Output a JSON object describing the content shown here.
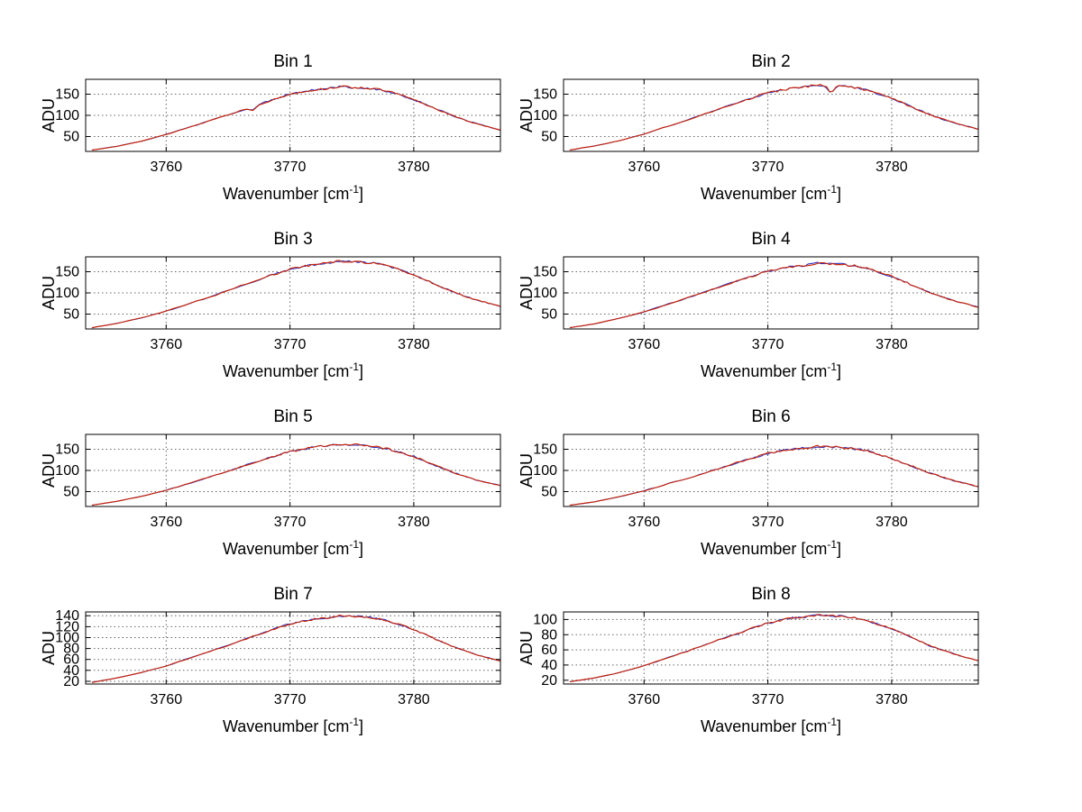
{
  "labels": {
    "ylabel": "ADU",
    "xlabel_prefix": "Wavenumber [cm",
    "xlabel_sup": "-1",
    "xlabel_suffix": "]"
  },
  "style": {
    "background": "#ffffff",
    "axis_color": "#000000",
    "grid_color": "#666666",
    "line_color_red": "#cc2200",
    "line_color_blue": "#3333bb"
  },
  "chart_data": {
    "type": "line",
    "title": "",
    "xlabel": "Wavenumber [cm^-1]",
    "ylabel": "ADU",
    "grid": true,
    "xlim": [
      3753.5,
      3787
    ],
    "xticks": [
      3760,
      3770,
      3780
    ],
    "x": [
      3754,
      3756,
      3758,
      3760,
      3762,
      3764,
      3766,
      3768,
      3769,
      3770,
      3771,
      3772,
      3773,
      3774,
      3775,
      3776,
      3777,
      3778,
      3779,
      3780,
      3781,
      3782,
      3783,
      3784,
      3785,
      3786,
      3787
    ],
    "subplots": [
      {
        "title": "Bin 1",
        "yticks": [
          50,
          100,
          150
        ],
        "ylim": [
          15,
          185
        ],
        "base": 15,
        "peak": 168,
        "noise": 2.5,
        "dips": [
          {
            "x": 3767,
            "depth": 8
          }
        ],
        "y": [
          18,
          27,
          39,
          55,
          73,
          92,
          111,
          131,
          140,
          150,
          156,
          160,
          163,
          168,
          166,
          165,
          162,
          156,
          147,
          137,
          125,
          113,
          101,
          90,
          81,
          73,
          65
        ]
      },
      {
        "title": "Bin 2",
        "yticks": [
          50,
          100,
          150
        ],
        "ylim": [
          15,
          185
        ],
        "base": 15,
        "peak": 172,
        "noise": 2.5,
        "dips": [
          {
            "x": 3775.1,
            "depth": 14
          }
        ],
        "y": [
          18,
          28,
          40,
          56,
          75,
          94,
          114,
          134,
          144,
          153,
          159,
          164,
          167,
          172,
          170,
          169,
          166,
          159,
          150,
          141,
          128,
          115,
          103,
          92,
          83,
          75,
          67
        ]
      },
      {
        "title": "Bin 3",
        "yticks": [
          50,
          100,
          150
        ],
        "ylim": [
          15,
          185
        ],
        "base": 15,
        "peak": 175,
        "noise": 2.5,
        "dips": [],
        "y": [
          18,
          28,
          41,
          57,
          76,
          95,
          116,
          137,
          146,
          156,
          162,
          167,
          170,
          175,
          173,
          172,
          169,
          162,
          153,
          143,
          130,
          117,
          105,
          93,
          84,
          76,
          68
        ]
      },
      {
        "title": "Bin 4",
        "yticks": [
          50,
          100,
          150
        ],
        "ylim": [
          15,
          185
        ],
        "base": 15,
        "peak": 170,
        "noise": 2.5,
        "dips": [],
        "y": [
          18,
          27,
          40,
          55,
          74,
          93,
          113,
          133,
          142,
          151,
          158,
          162,
          165,
          170,
          168,
          167,
          164,
          158,
          148,
          139,
          127,
          114,
          102,
          91,
          82,
          74,
          66
        ]
      },
      {
        "title": "Bin 5",
        "yticks": [
          50,
          100,
          150
        ],
        "ylim": [
          15,
          185
        ],
        "base": 15,
        "peak": 162,
        "noise": 2.5,
        "dips": [],
        "y": [
          18,
          27,
          39,
          53,
          71,
          89,
          108,
          127,
          136,
          144,
          150,
          155,
          158,
          162,
          161,
          159,
          156,
          150,
          141,
          133,
          121,
          109,
          97,
          87,
          78,
          71,
          64
        ]
      },
      {
        "title": "Bin 6",
        "yticks": [
          50,
          100,
          150
        ],
        "ylim": [
          15,
          185
        ],
        "base": 15,
        "peak": 157,
        "noise": 2.5,
        "dips": [],
        "y": [
          18,
          26,
          38,
          52,
          69,
          86,
          104,
          123,
          131,
          140,
          146,
          150,
          153,
          157,
          156,
          154,
          151,
          146,
          137,
          129,
          117,
          106,
          95,
          85,
          76,
          69,
          62
        ]
      },
      {
        "title": "Bin 7",
        "yticks": [
          20,
          40,
          60,
          80,
          100,
          120,
          140
        ],
        "ylim": [
          15,
          147
        ],
        "base": 16,
        "peak": 140,
        "noise": 1.6,
        "dips": [],
        "y": [
          18,
          26,
          36,
          48,
          63,
          78,
          94,
          110,
          118,
          125,
          130,
          134,
          136,
          140,
          139,
          138,
          135,
          130,
          123,
          115,
          105,
          95,
          85,
          77,
          69,
          63,
          57
        ]
      },
      {
        "title": "Bin 8",
        "yticks": [
          20,
          40,
          60,
          80,
          100
        ],
        "ylim": [
          15,
          110
        ],
        "base": 16,
        "peak": 106,
        "noise": 1.4,
        "dips": [],
        "y": [
          18,
          23,
          30,
          39,
          50,
          61,
          73,
          84,
          90,
          95,
          99,
          102,
          103,
          106,
          105,
          104,
          102,
          99,
          93,
          88,
          81,
          74,
          66,
          60,
          55,
          50,
          46
        ]
      }
    ]
  }
}
